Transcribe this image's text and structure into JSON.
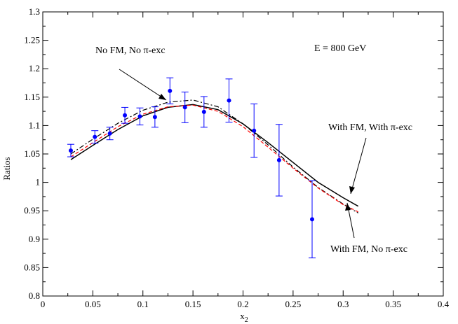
{
  "chart_data": {
    "type": "line",
    "xlabel": "x",
    "xlabel_sub": "2",
    "ylabel": "Ratios",
    "xlim": [
      0,
      0.4
    ],
    "ylim": [
      0.8,
      1.3
    ],
    "xticks": [
      "0",
      "0.05",
      "0.1",
      "0.15",
      "0.2",
      "0.25",
      "0.3",
      "0.35",
      "0.4"
    ],
    "yticks": [
      "0.8",
      "0.85",
      "0.9",
      "0.95",
      "1",
      "1.05",
      "1.1",
      "1.15",
      "1.2",
      "1.25",
      "1.3"
    ],
    "grid": false,
    "annotations": {
      "energy": "E = 800 GeV",
      "no_fm_no_pi": "No FM, No π-exc",
      "fm_pi": "With FM, With π-exc",
      "fm_no_pi": "With FM, No π-exc"
    },
    "series": [
      {
        "color": "#000000",
        "dash": "solid",
        "x": [
          0.028,
          0.05,
          0.075,
          0.1,
          0.125,
          0.15,
          0.175,
          0.2,
          0.225,
          0.25,
          0.275,
          0.3,
          0.315
        ],
        "y": [
          1.04,
          1.065,
          1.093,
          1.117,
          1.132,
          1.137,
          1.128,
          1.103,
          1.07,
          1.035,
          1.0,
          0.973,
          0.958
        ]
      },
      {
        "color": "#000000",
        "dash": "dashdot",
        "x": [
          0.028,
          0.05,
          0.075,
          0.1,
          0.125,
          0.15,
          0.175,
          0.2,
          0.225,
          0.25,
          0.275,
          0.3,
          0.315
        ],
        "y": [
          1.05,
          1.076,
          1.104,
          1.127,
          1.141,
          1.145,
          1.133,
          1.103,
          1.066,
          1.027,
          0.991,
          0.962,
          0.946
        ]
      },
      {
        "color": "#ff0000",
        "dash": "dashed",
        "x": [
          0.028,
          0.05,
          0.075,
          0.1,
          0.125,
          0.15,
          0.175,
          0.2,
          0.225,
          0.25,
          0.275,
          0.3,
          0.315
        ],
        "y": [
          1.045,
          1.07,
          1.098,
          1.12,
          1.133,
          1.136,
          1.125,
          1.098,
          1.062,
          1.025,
          0.99,
          0.961,
          0.948
        ]
      }
    ],
    "points": {
      "color": "#0000ff",
      "x": [
        0.028,
        0.052,
        0.067,
        0.082,
        0.097,
        0.112,
        0.127,
        0.142,
        0.161,
        0.186,
        0.211,
        0.236,
        0.269
      ],
      "y": [
        1.056,
        1.08,
        1.086,
        1.118,
        1.116,
        1.115,
        1.161,
        1.132,
        1.124,
        1.144,
        1.091,
        1.039,
        0.935
      ],
      "err": [
        0.011,
        0.011,
        0.011,
        0.014,
        0.015,
        0.018,
        0.023,
        0.027,
        0.027,
        0.038,
        0.047,
        0.063,
        0.068
      ]
    }
  }
}
